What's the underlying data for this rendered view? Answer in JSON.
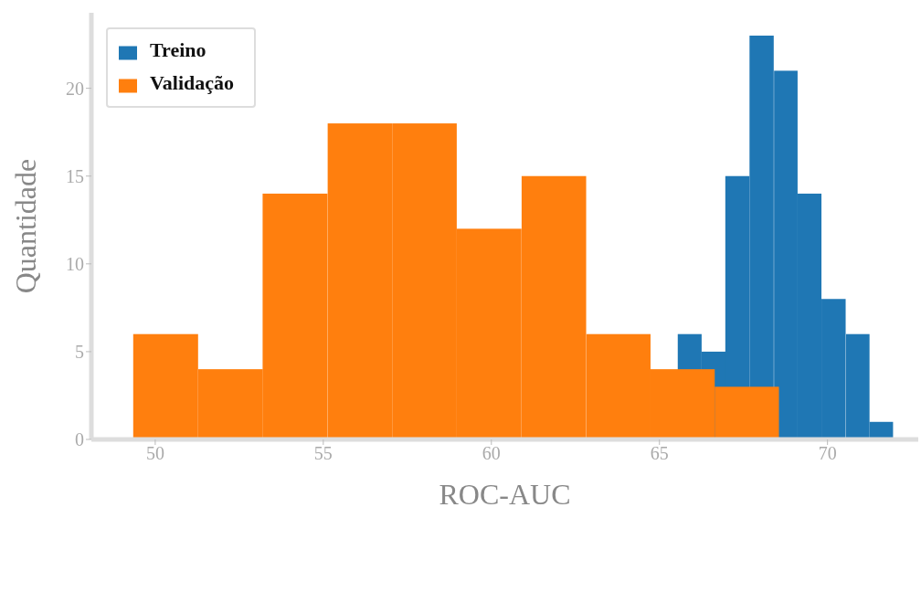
{
  "chart_data": {
    "type": "bar",
    "xlabel": "ROC-AUC",
    "ylabel": "Quantidade",
    "xlim": [
      48.1,
      72.7
    ],
    "ylim": [
      0,
      24.3
    ],
    "xticks": [
      50,
      55,
      60,
      65,
      70
    ],
    "yticks": [
      0,
      5,
      10,
      15,
      20
    ],
    "legend": "top left",
    "series": [
      {
        "name": "Treino",
        "color": "#1f77b4",
        "x": [
          65.9,
          66.61,
          67.32,
          68.04,
          68.76,
          69.46,
          70.18,
          70.9,
          71.6
        ],
        "values": [
          6,
          5,
          15,
          23,
          21,
          14,
          8,
          6,
          1
        ]
      },
      {
        "name": "Validação",
        "color": "#ff7f0e",
        "x": [
          50.31,
          52.24,
          54.16,
          56.09,
          58.01,
          59.93,
          61.86,
          63.78,
          65.69,
          67.6
        ],
        "values": [
          6,
          4,
          14,
          18,
          18,
          12,
          15,
          6,
          4,
          3
        ]
      }
    ]
  }
}
